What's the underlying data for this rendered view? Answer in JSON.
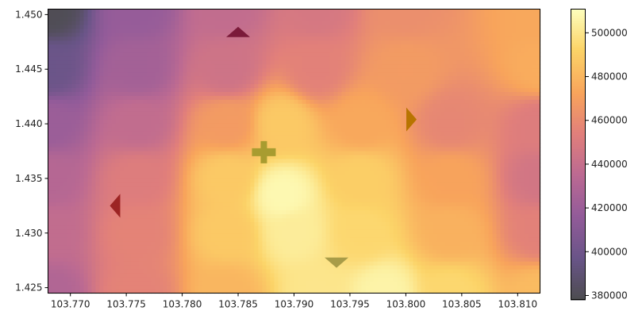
{
  "chart_data": {
    "type": "heatmap",
    "title": "",
    "xlabel": "",
    "ylabel": "",
    "xlim": [
      103.768,
      103.812
    ],
    "ylim": [
      1.4245,
      1.4505
    ],
    "x_ticks": [
      "103.770",
      "103.775",
      "103.780",
      "103.785",
      "103.790",
      "103.795",
      "103.800",
      "103.805",
      "103.810"
    ],
    "y_ticks": [
      "1.425",
      "1.430",
      "1.435",
      "1.440",
      "1.445",
      "1.450"
    ],
    "colorbar": {
      "range": [
        378000,
        511000
      ],
      "ticks": [
        "380000",
        "400000",
        "420000",
        "440000",
        "460000",
        "480000",
        "500000"
      ],
      "colormap": "inferno"
    },
    "surface_field": [
      {
        "x": 103.768,
        "y": 1.4505,
        "value": 380000
      },
      {
        "x": 103.776,
        "y": 1.4505,
        "value": 418000
      },
      {
        "x": 103.784,
        "y": 1.4505,
        "value": 438000
      },
      {
        "x": 103.792,
        "y": 1.4505,
        "value": 448000
      },
      {
        "x": 103.8,
        "y": 1.4505,
        "value": 462000
      },
      {
        "x": 103.812,
        "y": 1.4505,
        "value": 474000
      },
      {
        "x": 103.768,
        "y": 1.445,
        "value": 398000
      },
      {
        "x": 103.776,
        "y": 1.445,
        "value": 424000
      },
      {
        "x": 103.784,
        "y": 1.445,
        "value": 444000
      },
      {
        "x": 103.792,
        "y": 1.445,
        "value": 455000
      },
      {
        "x": 103.8,
        "y": 1.445,
        "value": 468000
      },
      {
        "x": 103.812,
        "y": 1.445,
        "value": 476000
      },
      {
        "x": 103.768,
        "y": 1.44,
        "value": 420000
      },
      {
        "x": 103.776,
        "y": 1.44,
        "value": 438000
      },
      {
        "x": 103.784,
        "y": 1.44,
        "value": 468000
      },
      {
        "x": 103.789,
        "y": 1.44,
        "value": 488000
      },
      {
        "x": 103.796,
        "y": 1.44,
        "value": 474000
      },
      {
        "x": 103.804,
        "y": 1.44,
        "value": 458000
      },
      {
        "x": 103.812,
        "y": 1.44,
        "value": 452000
      },
      {
        "x": 103.768,
        "y": 1.435,
        "value": 432000
      },
      {
        "x": 103.776,
        "y": 1.435,
        "value": 452000
      },
      {
        "x": 103.784,
        "y": 1.435,
        "value": 488000
      },
      {
        "x": 103.789,
        "y": 1.4335,
        "value": 508000
      },
      {
        "x": 103.796,
        "y": 1.435,
        "value": 490000
      },
      {
        "x": 103.804,
        "y": 1.435,
        "value": 472000
      },
      {
        "x": 103.812,
        "y": 1.435,
        "value": 446000
      },
      {
        "x": 103.768,
        "y": 1.43,
        "value": 438000
      },
      {
        "x": 103.776,
        "y": 1.43,
        "value": 456000
      },
      {
        "x": 103.784,
        "y": 1.43,
        "value": 488000
      },
      {
        "x": 103.79,
        "y": 1.43,
        "value": 503000
      },
      {
        "x": 103.796,
        "y": 1.43,
        "value": 494000
      },
      {
        "x": 103.804,
        "y": 1.43,
        "value": 478000
      },
      {
        "x": 103.812,
        "y": 1.43,
        "value": 455000
      },
      {
        "x": 103.768,
        "y": 1.4245,
        "value": 430000
      },
      {
        "x": 103.776,
        "y": 1.4245,
        "value": 456000
      },
      {
        "x": 103.784,
        "y": 1.4245,
        "value": 480000
      },
      {
        "x": 103.792,
        "y": 1.4245,
        "value": 500000
      },
      {
        "x": 103.798,
        "y": 1.4245,
        "value": 506000
      },
      {
        "x": 103.804,
        "y": 1.4245,
        "value": 494000
      },
      {
        "x": 103.812,
        "y": 1.4245,
        "value": 482000
      }
    ],
    "markers": [
      {
        "shape": "triangle-up",
        "x": 103.785,
        "y": 1.4483,
        "color": "#7b1a3a"
      },
      {
        "shape": "triangle-right",
        "x": 103.8004,
        "y": 1.4404,
        "color": "#b87400"
      },
      {
        "shape": "plus",
        "x": 103.7873,
        "y": 1.4374,
        "color": "#a89c30"
      },
      {
        "shape": "triangle-left",
        "x": 103.7741,
        "y": 1.4325,
        "color": "#9c2424"
      },
      {
        "shape": "triangle-down",
        "x": 103.7938,
        "y": 1.4274,
        "color": "#a89c48"
      }
    ]
  }
}
